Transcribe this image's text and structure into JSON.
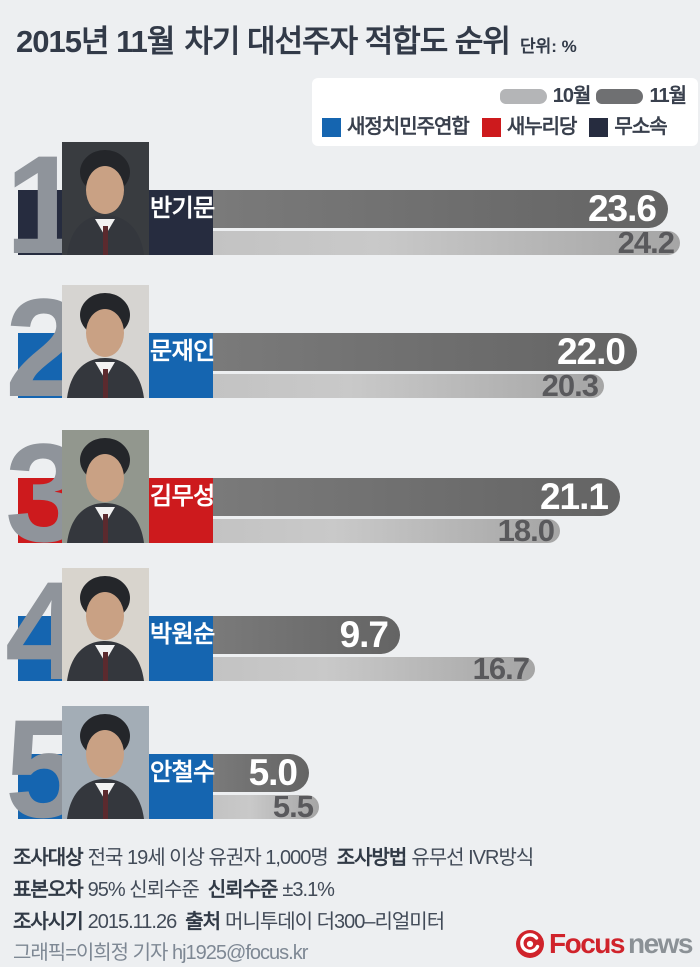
{
  "title": {
    "prefix": "2015년 11월",
    "main": "차기 대선주자 적합도 순위",
    "unit_label": "단위: %"
  },
  "legend": {
    "months": [
      {
        "label": "10월",
        "color": "#b4b5b7"
      },
      {
        "label": "11월",
        "color": "#6f7072"
      }
    ],
    "parties": [
      {
        "label": "새정치민주연합",
        "color": "#1565b0"
      },
      {
        "label": "새누리당",
        "color": "#cd1a1d"
      },
      {
        "label": "무소속",
        "color": "#262c3f"
      }
    ]
  },
  "chart_data": {
    "type": "bar",
    "title": "2015년 11월 차기 대선주자 적합도 순위",
    "unit": "%",
    "series_labels": [
      "11월",
      "10월"
    ],
    "xlim": [
      0,
      25
    ],
    "candidates": [
      {
        "rank": "1",
        "name": "반기문",
        "party": "무소속",
        "party_color": "#262c3f",
        "photo_bg": "#393c40",
        "nov": 23.6,
        "oct": 24.2,
        "nov_label": "23.6",
        "oct_label": "24.2"
      },
      {
        "rank": "2",
        "name": "문재인",
        "party": "새정치민주연합",
        "party_color": "#1565b0",
        "photo_bg": "#d6d4d1",
        "nov": 22.0,
        "oct": 20.3,
        "nov_label": "22.0",
        "oct_label": "20.3"
      },
      {
        "rank": "3",
        "name": "김무성",
        "party": "새누리당",
        "party_color": "#cd1a1d",
        "photo_bg": "#92978e",
        "nov": 21.1,
        "oct": 18.0,
        "nov_label": "21.1",
        "oct_label": "18.0"
      },
      {
        "rank": "4",
        "name": "박원순",
        "party": "새정치민주연합",
        "party_color": "#1565b0",
        "photo_bg": "#d8d4cd",
        "nov": 9.7,
        "oct": 16.7,
        "nov_label": "9.7",
        "oct_label": "16.7"
      },
      {
        "rank": "5",
        "name": "안철수",
        "party": "새정치민주연합",
        "party_color": "#1565b0",
        "photo_bg": "#a3adb6",
        "nov": 5.0,
        "oct": 5.5,
        "nov_label": "5.0",
        "oct_label": "5.5"
      }
    ]
  },
  "footer": {
    "lines": [
      [
        [
          "b",
          "조사대상"
        ],
        [
          "n",
          "전국 19세 이상 유권자 1,000명"
        ],
        [
          "b",
          "조사방법"
        ],
        [
          "n",
          "유무선 IVR방식"
        ]
      ],
      [
        [
          "b",
          "표본오차"
        ],
        [
          "n",
          "95% 신뢰수준"
        ],
        [
          "b",
          "신뢰수준"
        ],
        [
          "n",
          "±3.1%"
        ]
      ],
      [
        [
          "b",
          "조사시기"
        ],
        [
          "n",
          "2015.11.26"
        ],
        [
          "b",
          "출처"
        ],
        [
          "n",
          "머니투데이 더300–리얼미터"
        ]
      ]
    ],
    "credit": "그래픽=이희정 기자 hj1925@focus.kr"
  },
  "logo": {
    "focus": "Focus",
    "news": "news",
    "color": "#d0232b"
  },
  "colors": {
    "background": "#edeff1",
    "bar_november": "#6e6e6e",
    "bar_october": "#bfbfbf",
    "rank_numeral": "#8f949b",
    "title_text": "#323a48"
  }
}
